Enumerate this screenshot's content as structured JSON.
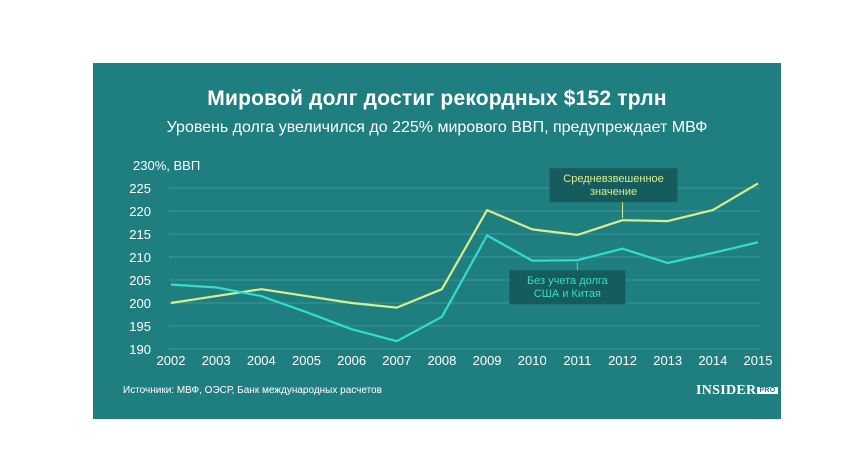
{
  "title": "Мировой долг достиг рекордных $152 трлн",
  "subtitle": "Уровень долга увеличился до 225% мирового ВВП, предупреждает МВФ",
  "source": "Источники: МВФ, ОЭСР, Банк международных расчетов",
  "logo": {
    "text": "INSIDER",
    "badge": "PRO"
  },
  "colors": {
    "background": "#1f7f80",
    "series_weighted": "#d7ef8a",
    "series_ex_us_china": "#34dccb",
    "annotation_box": "#165c5d",
    "grid": "#3f9696"
  },
  "chart_data": {
    "type": "line",
    "y_unit_label": "230%, ВВП",
    "ylim": [
      190,
      230
    ],
    "yticks": [
      190,
      195,
      200,
      205,
      210,
      215,
      220,
      225
    ],
    "x": [
      "2002",
      "2003",
      "2004",
      "2005",
      "2006",
      "2007",
      "2008",
      "2009",
      "2010",
      "2011",
      "2012",
      "2013",
      "2014",
      "2015"
    ],
    "grid": true,
    "series": [
      {
        "key": "weighted",
        "values": [
          200,
          201.5,
          203,
          201.5,
          200,
          199,
          203,
          220.2,
          216,
          214.8,
          218,
          217.8,
          220.2,
          226
        ]
      },
      {
        "key": "ex_us_china",
        "values": [
          204,
          203.4,
          201.5,
          198,
          194.3,
          191.7,
          197,
          214.7,
          209.2,
          209.3,
          211.8,
          208.7,
          210.9,
          213.2
        ]
      }
    ],
    "annotations": [
      {
        "key": "weighted",
        "lines": [
          "Средневзвешенное",
          "значение"
        ],
        "x": "2012",
        "y": 218
      },
      {
        "key": "ex_us_china",
        "lines": [
          "Без учета долга",
          "США и Китая"
        ],
        "x": "2011",
        "y": 209.3
      }
    ]
  }
}
